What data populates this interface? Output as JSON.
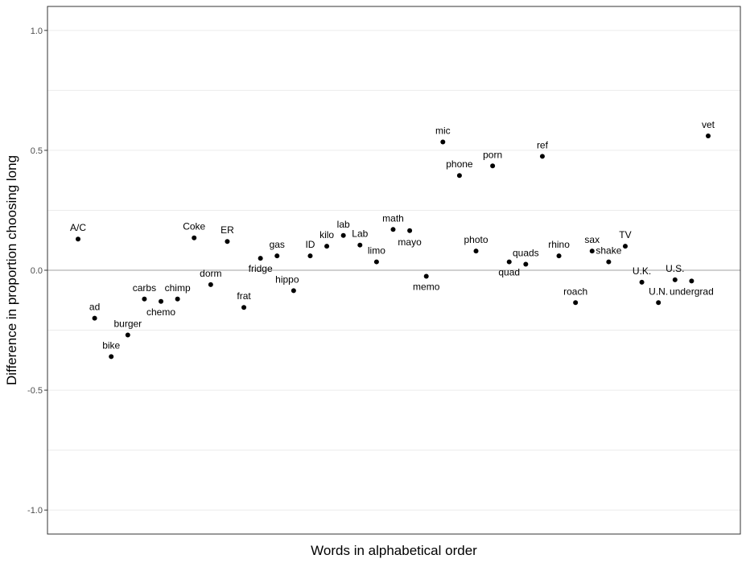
{
  "chart_data": {
    "type": "scatter",
    "title": "",
    "xlabel": "Words in alphabetical order",
    "ylabel": "Difference in proportion choosing long",
    "ylim": [
      -1.1,
      1.1
    ],
    "yticks": [
      -1.0,
      -0.5,
      0.0,
      0.5,
      1.0
    ],
    "ytick_labels": [
      "-1.0",
      "-0.5",
      "0.0",
      "0.5",
      "1.0"
    ],
    "grid": true,
    "reference_line_y": 0,
    "point_color": "#000000",
    "points": [
      {
        "label": "A/C",
        "y": 0.13
      },
      {
        "label": "ad",
        "y": -0.2
      },
      {
        "label": "bike",
        "y": -0.36
      },
      {
        "label": "burger",
        "y": -0.27
      },
      {
        "label": "carbs",
        "y": -0.12
      },
      {
        "label": "chemo",
        "y": -0.13
      },
      {
        "label": "chimp",
        "y": -0.12
      },
      {
        "label": "Coke",
        "y": 0.135
      },
      {
        "label": "dorm",
        "y": -0.06
      },
      {
        "label": "ER",
        "y": 0.12
      },
      {
        "label": "frat",
        "y": -0.155
      },
      {
        "label": "fridge",
        "y": 0.05
      },
      {
        "label": "gas",
        "y": 0.06
      },
      {
        "label": "hippo",
        "y": -0.085
      },
      {
        "label": "ID",
        "y": 0.06
      },
      {
        "label": "kilo",
        "y": 0.1
      },
      {
        "label": "lab",
        "y": 0.145
      },
      {
        "label": "Lab",
        "y": 0.105
      },
      {
        "label": "limo",
        "y": 0.035
      },
      {
        "label": "math",
        "y": 0.17
      },
      {
        "label": "mayo",
        "y": 0.165
      },
      {
        "label": "memo",
        "y": -0.025
      },
      {
        "label": "mic",
        "y": 0.535
      },
      {
        "label": "phone",
        "y": 0.395
      },
      {
        "label": "photo",
        "y": 0.08
      },
      {
        "label": "porn",
        "y": 0.435
      },
      {
        "label": "quad",
        "y": 0.035
      },
      {
        "label": "quads",
        "y": 0.025
      },
      {
        "label": "ref",
        "y": 0.475
      },
      {
        "label": "rhino",
        "y": 0.06
      },
      {
        "label": "roach",
        "y": -0.135
      },
      {
        "label": "sax",
        "y": 0.08
      },
      {
        "label": "shake",
        "y": 0.035
      },
      {
        "label": "TV",
        "y": 0.1
      },
      {
        "label": "U.K.",
        "y": -0.05
      },
      {
        "label": "U.N.",
        "y": -0.135
      },
      {
        "label": "U.S.",
        "y": -0.04
      },
      {
        "label": "undergrad",
        "y": -0.045
      },
      {
        "label": "vet",
        "y": 0.56
      }
    ]
  }
}
